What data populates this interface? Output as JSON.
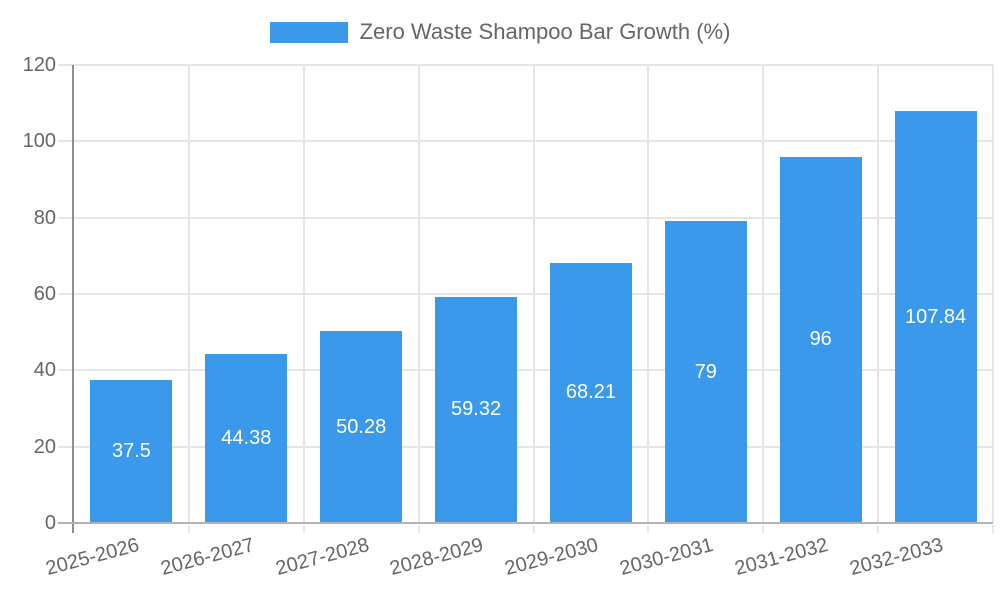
{
  "legend": {
    "label": "Zero Waste Shampoo Bar Growth (%)"
  },
  "chart_data": {
    "type": "bar",
    "title": "Zero Waste Shampoo Bar Growth (%)",
    "series_name": "Zero Waste Shampoo Bar Growth (%)",
    "categories": [
      "2025-2026",
      "2026-2027",
      "2027-2028",
      "2028-2029",
      "2029-2030",
      "2030-2031",
      "2031-2032",
      "2032-2033"
    ],
    "values": [
      37.5,
      44.38,
      50.28,
      59.32,
      68.21,
      79,
      96,
      107.84
    ],
    "value_labels": [
      "37.5",
      "44.38",
      "50.28",
      "59.32",
      "68.21",
      "79",
      "96",
      "107.84"
    ],
    "xlabel": "",
    "ylabel": "",
    "ylim": [
      0,
      120
    ],
    "yticks": [
      0,
      20,
      40,
      60,
      80,
      100,
      120
    ],
    "grid": true,
    "legend_position": "top",
    "x_tick_rotation_deg": -15,
    "colors": {
      "bar": "#3B99EC",
      "grid": "#E6E6E6",
      "y_axis": "#8F8F8F",
      "x_axis": "#B3B3B3",
      "tick_text": "#666666",
      "legend_text": "#666666",
      "value_label": "#FFFFFF",
      "background": "#FFFFFF"
    }
  }
}
